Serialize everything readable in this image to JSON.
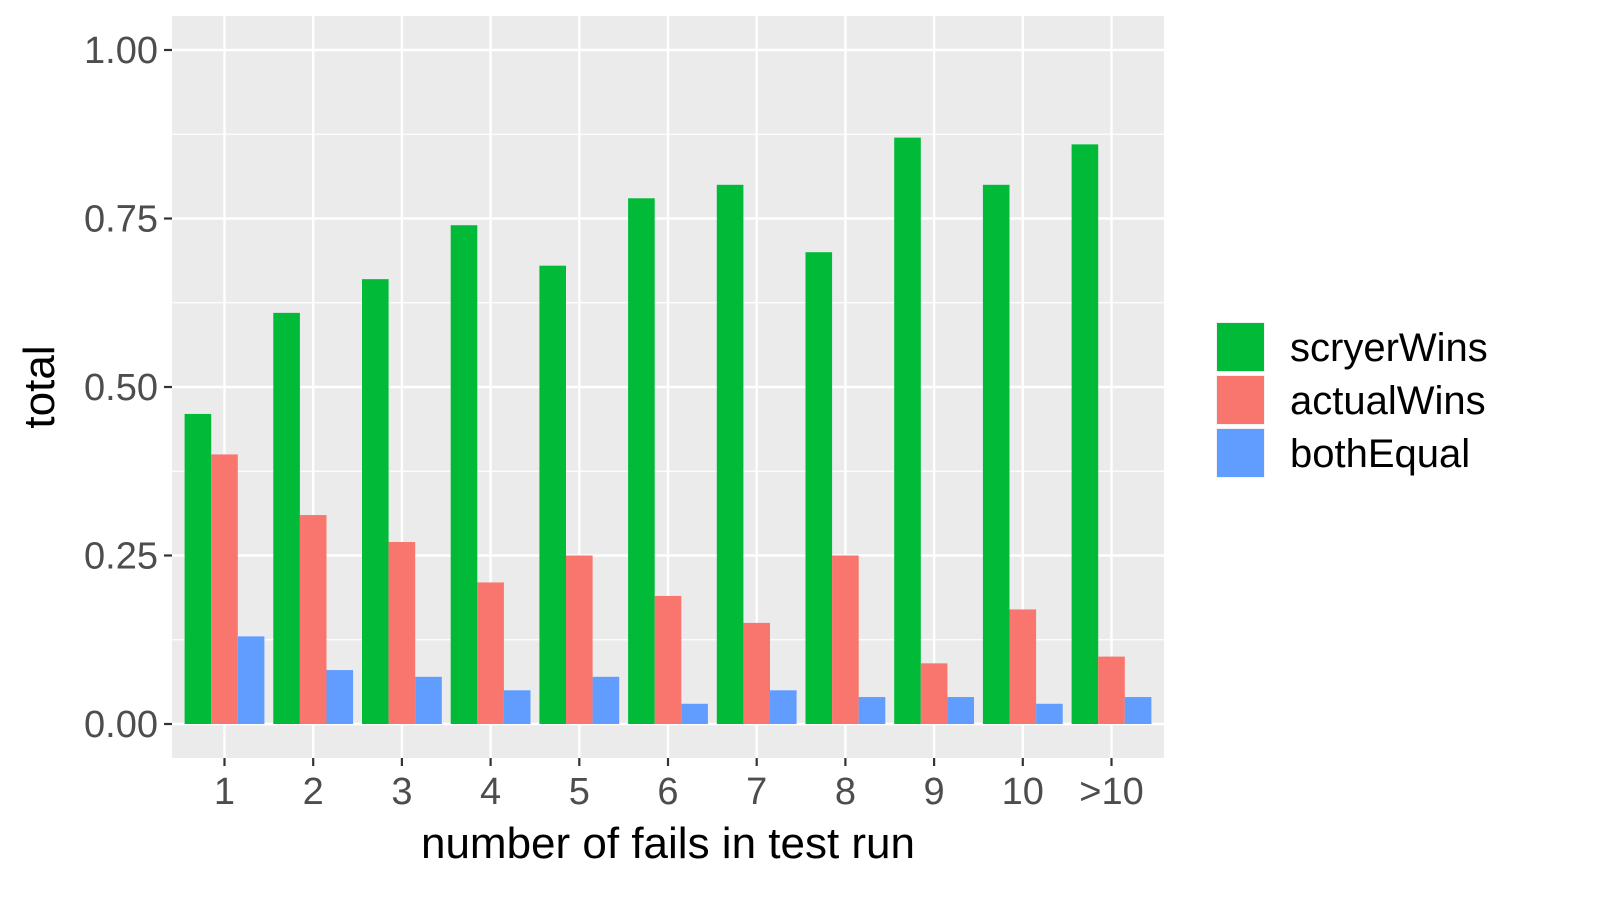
{
  "chart_data": {
    "type": "bar",
    "title": "",
    "xlabel": "number of fails in test run",
    "ylabel": "total",
    "categories": [
      "1",
      "2",
      "3",
      "4",
      "5",
      "6",
      "7",
      "8",
      "9",
      "10",
      ">10"
    ],
    "ylim": [
      -0.05,
      1.05
    ],
    "yticks": [
      0.0,
      0.25,
      0.5,
      0.75,
      1.0
    ],
    "ytick_labels": [
      "0.00",
      "0.25",
      "0.50",
      "0.75",
      "1.00"
    ],
    "grid": true,
    "legend_position": "right",
    "series": [
      {
        "name": "scryerWins",
        "color": "#00BA38",
        "values": [
          0.46,
          0.61,
          0.66,
          0.74,
          0.68,
          0.78,
          0.8,
          0.7,
          0.87,
          0.8,
          0.86
        ]
      },
      {
        "name": "actualWins",
        "color": "#F8766D",
        "values": [
          0.4,
          0.31,
          0.27,
          0.21,
          0.25,
          0.19,
          0.15,
          0.25,
          0.09,
          0.17,
          0.1
        ]
      },
      {
        "name": "bothEqual",
        "color": "#619CFF",
        "values": [
          0.13,
          0.08,
          0.07,
          0.05,
          0.07,
          0.03,
          0.05,
          0.04,
          0.04,
          0.03,
          0.04
        ]
      }
    ],
    "panel_background": "#EBEBEB",
    "grid_color": "#FFFFFF"
  }
}
